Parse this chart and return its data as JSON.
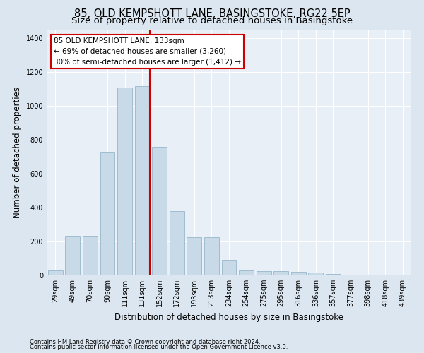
{
  "title": "85, OLD KEMPSHOTT LANE, BASINGSTOKE, RG22 5EP",
  "subtitle": "Size of property relative to detached houses in Basingstoke",
  "xlabel": "Distribution of detached houses by size in Basingstoke",
  "ylabel": "Number of detached properties",
  "categories": [
    "29sqm",
    "49sqm",
    "70sqm",
    "90sqm",
    "111sqm",
    "131sqm",
    "152sqm",
    "172sqm",
    "193sqm",
    "213sqm",
    "234sqm",
    "254sqm",
    "275sqm",
    "295sqm",
    "316sqm",
    "336sqm",
    "357sqm",
    "377sqm",
    "398sqm",
    "418sqm",
    "439sqm"
  ],
  "values": [
    30,
    235,
    235,
    725,
    1110,
    1120,
    760,
    380,
    225,
    225,
    90,
    30,
    25,
    25,
    20,
    15,
    10,
    0,
    0,
    0,
    0
  ],
  "bar_color": "#c8d9e8",
  "bar_edge_color": "#a0bcd0",
  "vline_index": 5,
  "vline_color": "#cc0000",
  "annotation_title": "85 OLD KEMPSHOTT LANE: 133sqm",
  "annotation_line1": "← 69% of detached houses are smaller (3,260)",
  "annotation_line2": "30% of semi-detached houses are larger (1,412) →",
  "annotation_box_facecolor": "#ffffff",
  "annotation_box_edgecolor": "#cc0000",
  "ylim": [
    0,
    1450
  ],
  "yticks": [
    0,
    200,
    400,
    600,
    800,
    1000,
    1200,
    1400
  ],
  "footer1": "Contains HM Land Registry data © Crown copyright and database right 2024.",
  "footer2": "Contains public sector information licensed under the Open Government Licence v3.0.",
  "fig_facecolor": "#dce6f0",
  "plot_facecolor": "#e8eff6",
  "title_fontsize": 10.5,
  "subtitle_fontsize": 9.5,
  "tick_fontsize": 7,
  "ylabel_fontsize": 8.5,
  "xlabel_fontsize": 8.5,
  "annotation_fontsize": 7.5,
  "footer_fontsize": 6.0
}
